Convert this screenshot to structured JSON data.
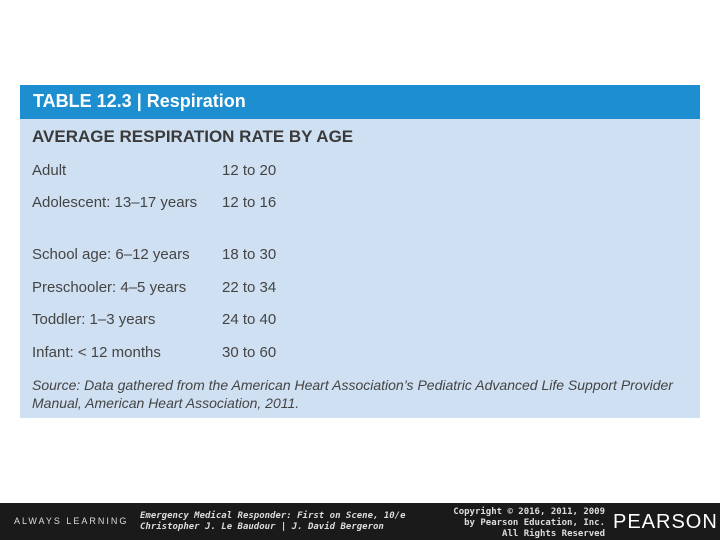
{
  "header": {
    "title": "TABLE 12.3 | Respiration"
  },
  "table": {
    "title": "AVERAGE RESPIRATION RATE BY AGE",
    "rows": [
      [
        "Adult",
        "12 to 20"
      ],
      [
        "Adolescent: 13–17 years",
        "12 to 16"
      ],
      [
        "School age: 6–12 years",
        "18 to 30"
      ],
      [
        "Preschooler: 4–5 years",
        "22 to 34"
      ],
      [
        "Toddler: 1–3 years",
        "24 to 40"
      ],
      [
        "Infant: < 12 months",
        "30 to 60"
      ]
    ],
    "source": "Source: Data gathered from the American Heart Association’s Pediatric Advanced Life Support Provider Manual, American Heart Association, 2011."
  },
  "footer": {
    "tagline": "ALWAYS LEARNING",
    "book": [
      "Emergency Medical Responder: First on Scene, 10/e",
      "Christopher J. Le Baudour | J. David Bergeron"
    ],
    "copyright": [
      "Copyright © 2016, 2011, 2009",
      "by Pearson Education, Inc.",
      "All Rights Reserved"
    ],
    "logo": "PEARSON"
  }
}
